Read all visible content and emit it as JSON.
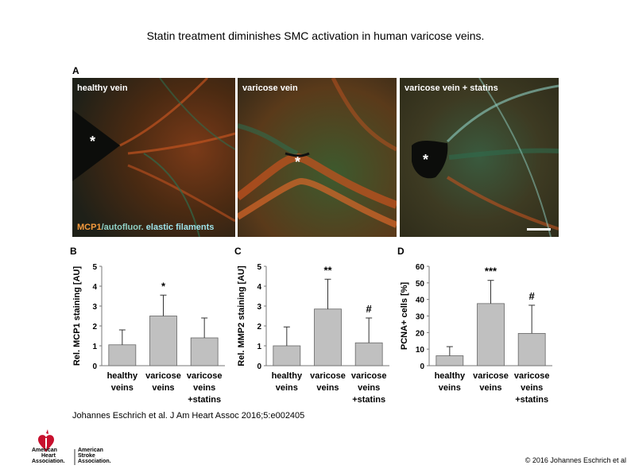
{
  "title": "Statin treatment diminishes SMC activation in human varicose veins.",
  "panel_a": {
    "letter": "A",
    "images": [
      {
        "label": "healthy vein",
        "star": "*"
      },
      {
        "label": "varicose vein",
        "star": "*"
      },
      {
        "label": "varicose vein + statins",
        "star": "*"
      }
    ],
    "legend": {
      "part1": "MCP1",
      "part2": "/autofluor.",
      "part3": " elastic filaments"
    },
    "colors": {
      "mcp1": "#f59a3c",
      "autofluor": "#8fd0c4",
      "elastic": "#9ee3ea",
      "tissue_red": "#c0521f",
      "tissue_green": "#2f6b4c"
    }
  },
  "chart_data": [
    {
      "letter": "B",
      "type": "bar",
      "ylabel": "Rel. MCP1 staining [AU]",
      "ylim": [
        0,
        5
      ],
      "yticks": [
        "0",
        "1",
        "2",
        "3",
        "4",
        "5"
      ],
      "categories": [
        [
          "healthy",
          "veins"
        ],
        [
          "varicose",
          "veins"
        ],
        [
          "varicose",
          "veins",
          "+statins"
        ]
      ],
      "values": [
        1.05,
        2.5,
        1.4
      ],
      "errors": [
        0.75,
        1.05,
        1.0
      ],
      "annotations": [
        "",
        "*",
        ""
      ],
      "bar_color": "#c0c0c0"
    },
    {
      "letter": "C",
      "type": "bar",
      "ylabel": "Rel. MMP2 staining [AU]",
      "ylim": [
        0,
        5
      ],
      "yticks": [
        "0",
        "1",
        "2",
        "3",
        "4",
        "5"
      ],
      "categories": [
        [
          "healthy",
          "veins"
        ],
        [
          "varicose",
          "veins"
        ],
        [
          "varicose",
          "veins",
          "+statins"
        ]
      ],
      "values": [
        1.0,
        2.85,
        1.15
      ],
      "errors": [
        0.95,
        1.5,
        1.25
      ],
      "annotations": [
        "",
        "**",
        "#"
      ],
      "bar_color": "#c0c0c0"
    },
    {
      "letter": "D",
      "type": "bar",
      "ylabel": "PCNA+ cells [%]",
      "ylim": [
        0,
        60
      ],
      "yticks": [
        "0",
        "10",
        "20",
        "30",
        "40",
        "50",
        "60"
      ],
      "categories": [
        [
          "healthy",
          "veins"
        ],
        [
          "varicose",
          "veins"
        ],
        [
          "varicose",
          "veins",
          "+statins"
        ]
      ],
      "values": [
        6,
        37.5,
        19.5
      ],
      "errors": [
        5.5,
        14,
        17
      ],
      "annotations": [
        "",
        "***",
        "#"
      ],
      "bar_color": "#c0c0c0"
    }
  ],
  "citation": "Johannes Eschrich et al. J Am Heart Assoc 2016;5:e002405",
  "copyright": "© 2016 Johannes Eschrich et al",
  "logo": {
    "left_line1": "American",
    "left_line2": "Heart",
    "left_line3": "Association.",
    "right_line1": "American",
    "right_line2": "Stroke",
    "right_line3": "Association.",
    "color": "#c8102e"
  }
}
